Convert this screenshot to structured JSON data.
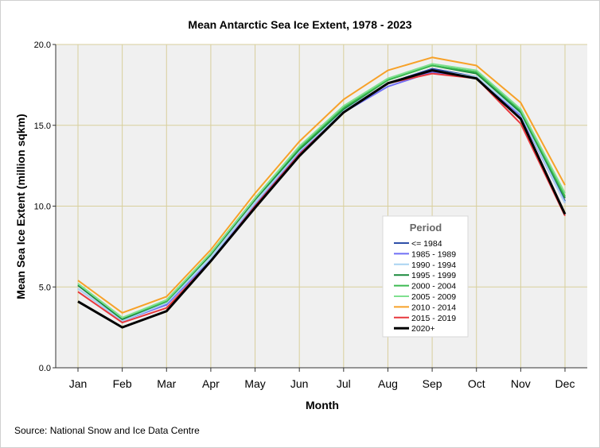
{
  "chart_data": {
    "type": "line",
    "title": "Mean Antarctic Sea Ice Extent, 1978 - 2023",
    "xlabel": "Month",
    "ylabel": "Mean Sea Ice Extent (million sqkm)",
    "ylim": [
      0,
      20
    ],
    "yticks": [
      "0.0",
      "5.0",
      "10.0",
      "15.0",
      "20.0"
    ],
    "grid": true,
    "legend_title": "Period",
    "legend_placement": "center-right",
    "categories": [
      "Jan",
      "Feb",
      "Mar",
      "Apr",
      "May",
      "Jun",
      "Jul",
      "Aug",
      "Sep",
      "Oct",
      "Nov",
      "Dec"
    ],
    "series": [
      {
        "name": "<= 1984",
        "color": "#2e4fa8",
        "values": [
          5.1,
          3.0,
          3.9,
          6.8,
          10.2,
          13.4,
          15.9,
          17.6,
          18.5,
          18.0,
          15.6,
          10.3
        ]
      },
      {
        "name": "1985 - 1989",
        "color": "#6f6ff5",
        "values": [
          4.9,
          2.9,
          3.9,
          6.7,
          10.1,
          13.3,
          15.8,
          17.4,
          18.3,
          17.9,
          15.6,
          10.2
        ]
      },
      {
        "name": "1990 - 1994",
        "color": "#a9d3f2",
        "values": [
          4.9,
          2.9,
          4.0,
          6.8,
          10.2,
          13.4,
          15.9,
          17.6,
          18.4,
          18.0,
          15.7,
          10.2
        ]
      },
      {
        "name": "1995 - 1999",
        "color": "#1a8a3c",
        "values": [
          5.1,
          3.0,
          4.1,
          7.0,
          10.4,
          13.5,
          16.0,
          17.8,
          18.7,
          18.2,
          15.8,
          10.5
        ]
      },
      {
        "name": "2000 - 2004",
        "color": "#3cba50",
        "values": [
          5.2,
          3.1,
          4.1,
          7.1,
          10.5,
          13.6,
          16.1,
          17.8,
          18.7,
          18.3,
          15.9,
          10.6
        ]
      },
      {
        "name": "2005 - 2009",
        "color": "#7fe08f",
        "values": [
          5.2,
          3.1,
          4.2,
          7.1,
          10.5,
          13.7,
          16.2,
          17.9,
          18.8,
          18.4,
          16.0,
          10.8
        ]
      },
      {
        "name": "2010 - 2014",
        "color": "#f7a128",
        "values": [
          5.4,
          3.4,
          4.4,
          7.3,
          10.8,
          14.0,
          16.6,
          18.4,
          19.2,
          18.7,
          16.4,
          11.3
        ]
      },
      {
        "name": "2015 - 2019",
        "color": "#e8383d",
        "values": [
          4.7,
          2.8,
          3.7,
          6.6,
          10.0,
          13.2,
          15.8,
          17.6,
          18.2,
          17.9,
          15.1,
          9.4
        ]
      },
      {
        "name": "2020+",
        "color": "#000000",
        "values": [
          4.1,
          2.5,
          3.5,
          6.6,
          9.9,
          13.1,
          15.8,
          17.6,
          18.4,
          17.9,
          15.4,
          9.5
        ]
      }
    ]
  },
  "source": "Source: National Snow and Ice Data Centre"
}
